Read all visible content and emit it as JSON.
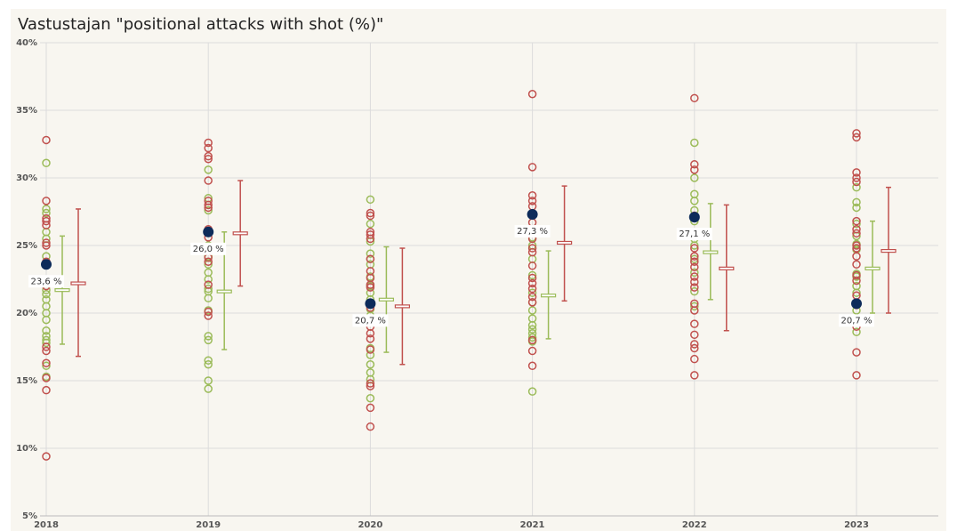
{
  "chart_data": {
    "type": "dot",
    "title": "Vastustajan \"positional attacks with shot (%)\"",
    "categories": [
      "2018",
      "2019",
      "2020",
      "2021",
      "2022",
      "2023"
    ],
    "ylim": [
      5,
      40
    ],
    "yticks": [
      {
        "value": 5,
        "label": "5%"
      },
      {
        "value": 10,
        "label": "10%"
      },
      {
        "value": 15,
        "label": "15%"
      },
      {
        "value": 20,
        "label": "20%"
      },
      {
        "value": 25,
        "label": "25%"
      },
      {
        "value": 30,
        "label": "30%"
      },
      {
        "value": 35,
        "label": "35%"
      },
      {
        "value": 40,
        "label": "40%"
      }
    ],
    "grid": true,
    "series": [
      {
        "color": "#c0504d",
        "values": [
          [
            32.8,
            28.3,
            27.0,
            26.5,
            26.8,
            25.2,
            25.0,
            23.8,
            22.0,
            17.5,
            17.2,
            16.3,
            15.2,
            14.3,
            9.4
          ],
          [
            32.6,
            32.2,
            31.6,
            31.4,
            29.8,
            28.3,
            28.0,
            27.8,
            26.2,
            25.6,
            24.1,
            23.8,
            22.1,
            20.1,
            19.8
          ],
          [
            27.4,
            27.2,
            26.0,
            25.8,
            25.5,
            24.0,
            23.1,
            22.6,
            22.1,
            21.9,
            20.4,
            19.0,
            18.5,
            18.1,
            17.3,
            14.8,
            14.6,
            13.0,
            11.6
          ],
          [
            36.2,
            30.8,
            28.7,
            28.3,
            27.9,
            26.7,
            25.5,
            24.8,
            24.5,
            23.5,
            22.6,
            22.2,
            21.8,
            21.2,
            20.8,
            18.0,
            17.2,
            16.1
          ],
          [
            35.9,
            31.0,
            30.6,
            27.2,
            24.8,
            24.2,
            23.8,
            23.4,
            22.7,
            22.3,
            21.9,
            20.7,
            20.2,
            19.2,
            18.4,
            17.7,
            17.4,
            16.6,
            15.4
          ],
          [
            33.3,
            33.0,
            30.4,
            30.0,
            29.7,
            26.8,
            26.2,
            25.9,
            25.0,
            24.8,
            24.2,
            23.6,
            22.8,
            22.4,
            21.3,
            20.6,
            19.0,
            17.1,
            15.4
          ]
        ]
      },
      {
        "color": "#9bbb59",
        "values": [
          [
            31.1,
            27.7,
            27.4,
            26.0,
            25.5,
            24.2,
            21.7,
            21.4,
            21.0,
            20.5,
            20.0,
            19.5,
            18.7,
            18.3,
            18.0,
            17.8,
            16.1,
            15.3
          ],
          [
            30.6,
            28.5,
            27.6,
            25.0,
            24.2,
            23.6,
            23.0,
            22.5,
            21.8,
            21.6,
            21.1,
            20.2,
            18.3,
            18.0,
            16.5,
            16.2,
            15.0,
            14.4
          ],
          [
            28.4,
            26.6,
            25.3,
            24.4,
            24.0,
            23.6,
            22.7,
            22.0,
            21.5,
            21.0,
            20.3,
            19.8,
            17.4,
            16.9,
            16.2,
            15.6,
            15.1,
            13.7
          ],
          [
            25.6,
            25.0,
            24.0,
            22.8,
            21.5,
            20.8,
            20.2,
            19.6,
            19.1,
            18.8,
            18.5,
            18.2,
            17.9,
            14.2
          ],
          [
            32.6,
            30.0,
            28.8,
            28.3,
            27.6,
            26.8,
            25.5,
            25.0,
            24.0,
            23.0,
            21.6,
            20.5
          ],
          [
            29.3,
            28.2,
            27.8,
            26.6,
            25.7,
            25.1,
            24.7,
            22.9,
            22.7,
            22.0,
            21.5,
            20.2,
            18.6
          ]
        ]
      }
    ],
    "highlight": {
      "color": "#0d2b5a",
      "values": [
        23.6,
        26.0,
        20.7,
        27.3,
        27.1,
        20.7
      ],
      "value_labels": [
        "23,6 %",
        "26,0 %",
        "20,7 %",
        "27,3 %",
        "27,1 %",
        "20,7 %"
      ]
    },
    "error_bars": [
      {
        "color": "#9bbb59",
        "mean": [
          21.7,
          21.6,
          21.0,
          21.3,
          24.5,
          23.3
        ],
        "low": [
          17.7,
          17.3,
          17.1,
          18.1,
          21.0,
          20.0
        ],
        "high": [
          25.7,
          26.0,
          24.9,
          24.6,
          28.1,
          26.8
        ]
      },
      {
        "color": "#c0504d",
        "mean": [
          22.2,
          25.9,
          20.5,
          25.2,
          23.3,
          24.6
        ],
        "low": [
          16.8,
          22.0,
          16.2,
          20.9,
          18.7,
          20.0
        ],
        "high": [
          27.7,
          29.8,
          24.8,
          29.4,
          28.0,
          29.3
        ]
      }
    ]
  }
}
